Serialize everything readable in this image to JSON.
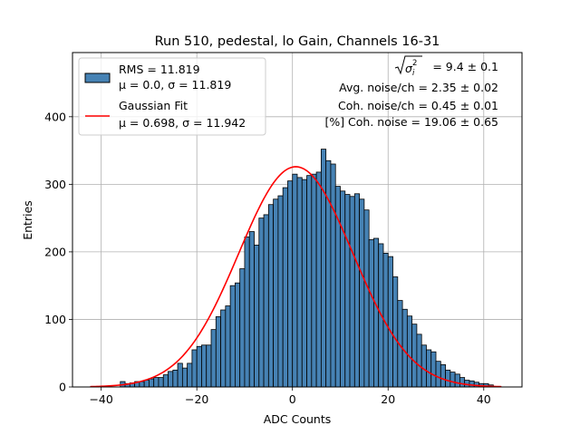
{
  "chart_data": {
    "type": "bar",
    "title": "Run 510, pedestal, lo Gain, Channels 16-31",
    "xlabel": "ADC Counts",
    "ylabel": "Entries",
    "xlim": [
      -46,
      48
    ],
    "ylim": [
      0,
      495
    ],
    "grid": true,
    "x_ticks": [
      -40,
      -20,
      0,
      20,
      40
    ],
    "x_tick_labels": [
      "−40",
      "−20",
      "0",
      "20",
      "40"
    ],
    "y_ticks": [
      0,
      100,
      200,
      300,
      400
    ],
    "y_tick_labels": [
      "0",
      "100",
      "200",
      "300",
      "400"
    ],
    "histogram": {
      "name": "RMS = 11.819",
      "name_line2": "μ = 0.0, σ = 11.819",
      "color": "#4682b4",
      "edge_color": "#000000",
      "bin_start": -36,
      "bin_width": 1,
      "counts": [
        8,
        5,
        6,
        8,
        8,
        10,
        12,
        14,
        14,
        18,
        23,
        25,
        35,
        28,
        35,
        55,
        60,
        62,
        62,
        85,
        104,
        114,
        120,
        150,
        154,
        175,
        222,
        230,
        210,
        250,
        255,
        270,
        278,
        283,
        295,
        305,
        315,
        310,
        307,
        313,
        315,
        318,
        352,
        335,
        330,
        297,
        290,
        285,
        282,
        286,
        278,
        262,
        218,
        220,
        212,
        198,
        193,
        163,
        128,
        115,
        105,
        93,
        78,
        62,
        55,
        52,
        38,
        33,
        25,
        22,
        19,
        14,
        10,
        9,
        7,
        5,
        5,
        3
      ]
    },
    "fit": {
      "name": "Gaussian Fit",
      "name_line2": "μ = 0.698, σ = 11.942",
      "color": "#ff0000",
      "mu": 0.698,
      "sigma": 11.942,
      "amplitude": 326,
      "x_range": [
        -42.3,
        43.7
      ]
    },
    "legend_position": "upper left",
    "stats_text": {
      "line1_value": " = 9.4 ± 0.1",
      "line2": "Avg. noise/ch = 2.35 ± 0.02",
      "line3": "Coh. noise/ch = 0.45 ± 0.01",
      "line4": "[%] Coh. noise = 19.06 ± 0.65"
    }
  }
}
